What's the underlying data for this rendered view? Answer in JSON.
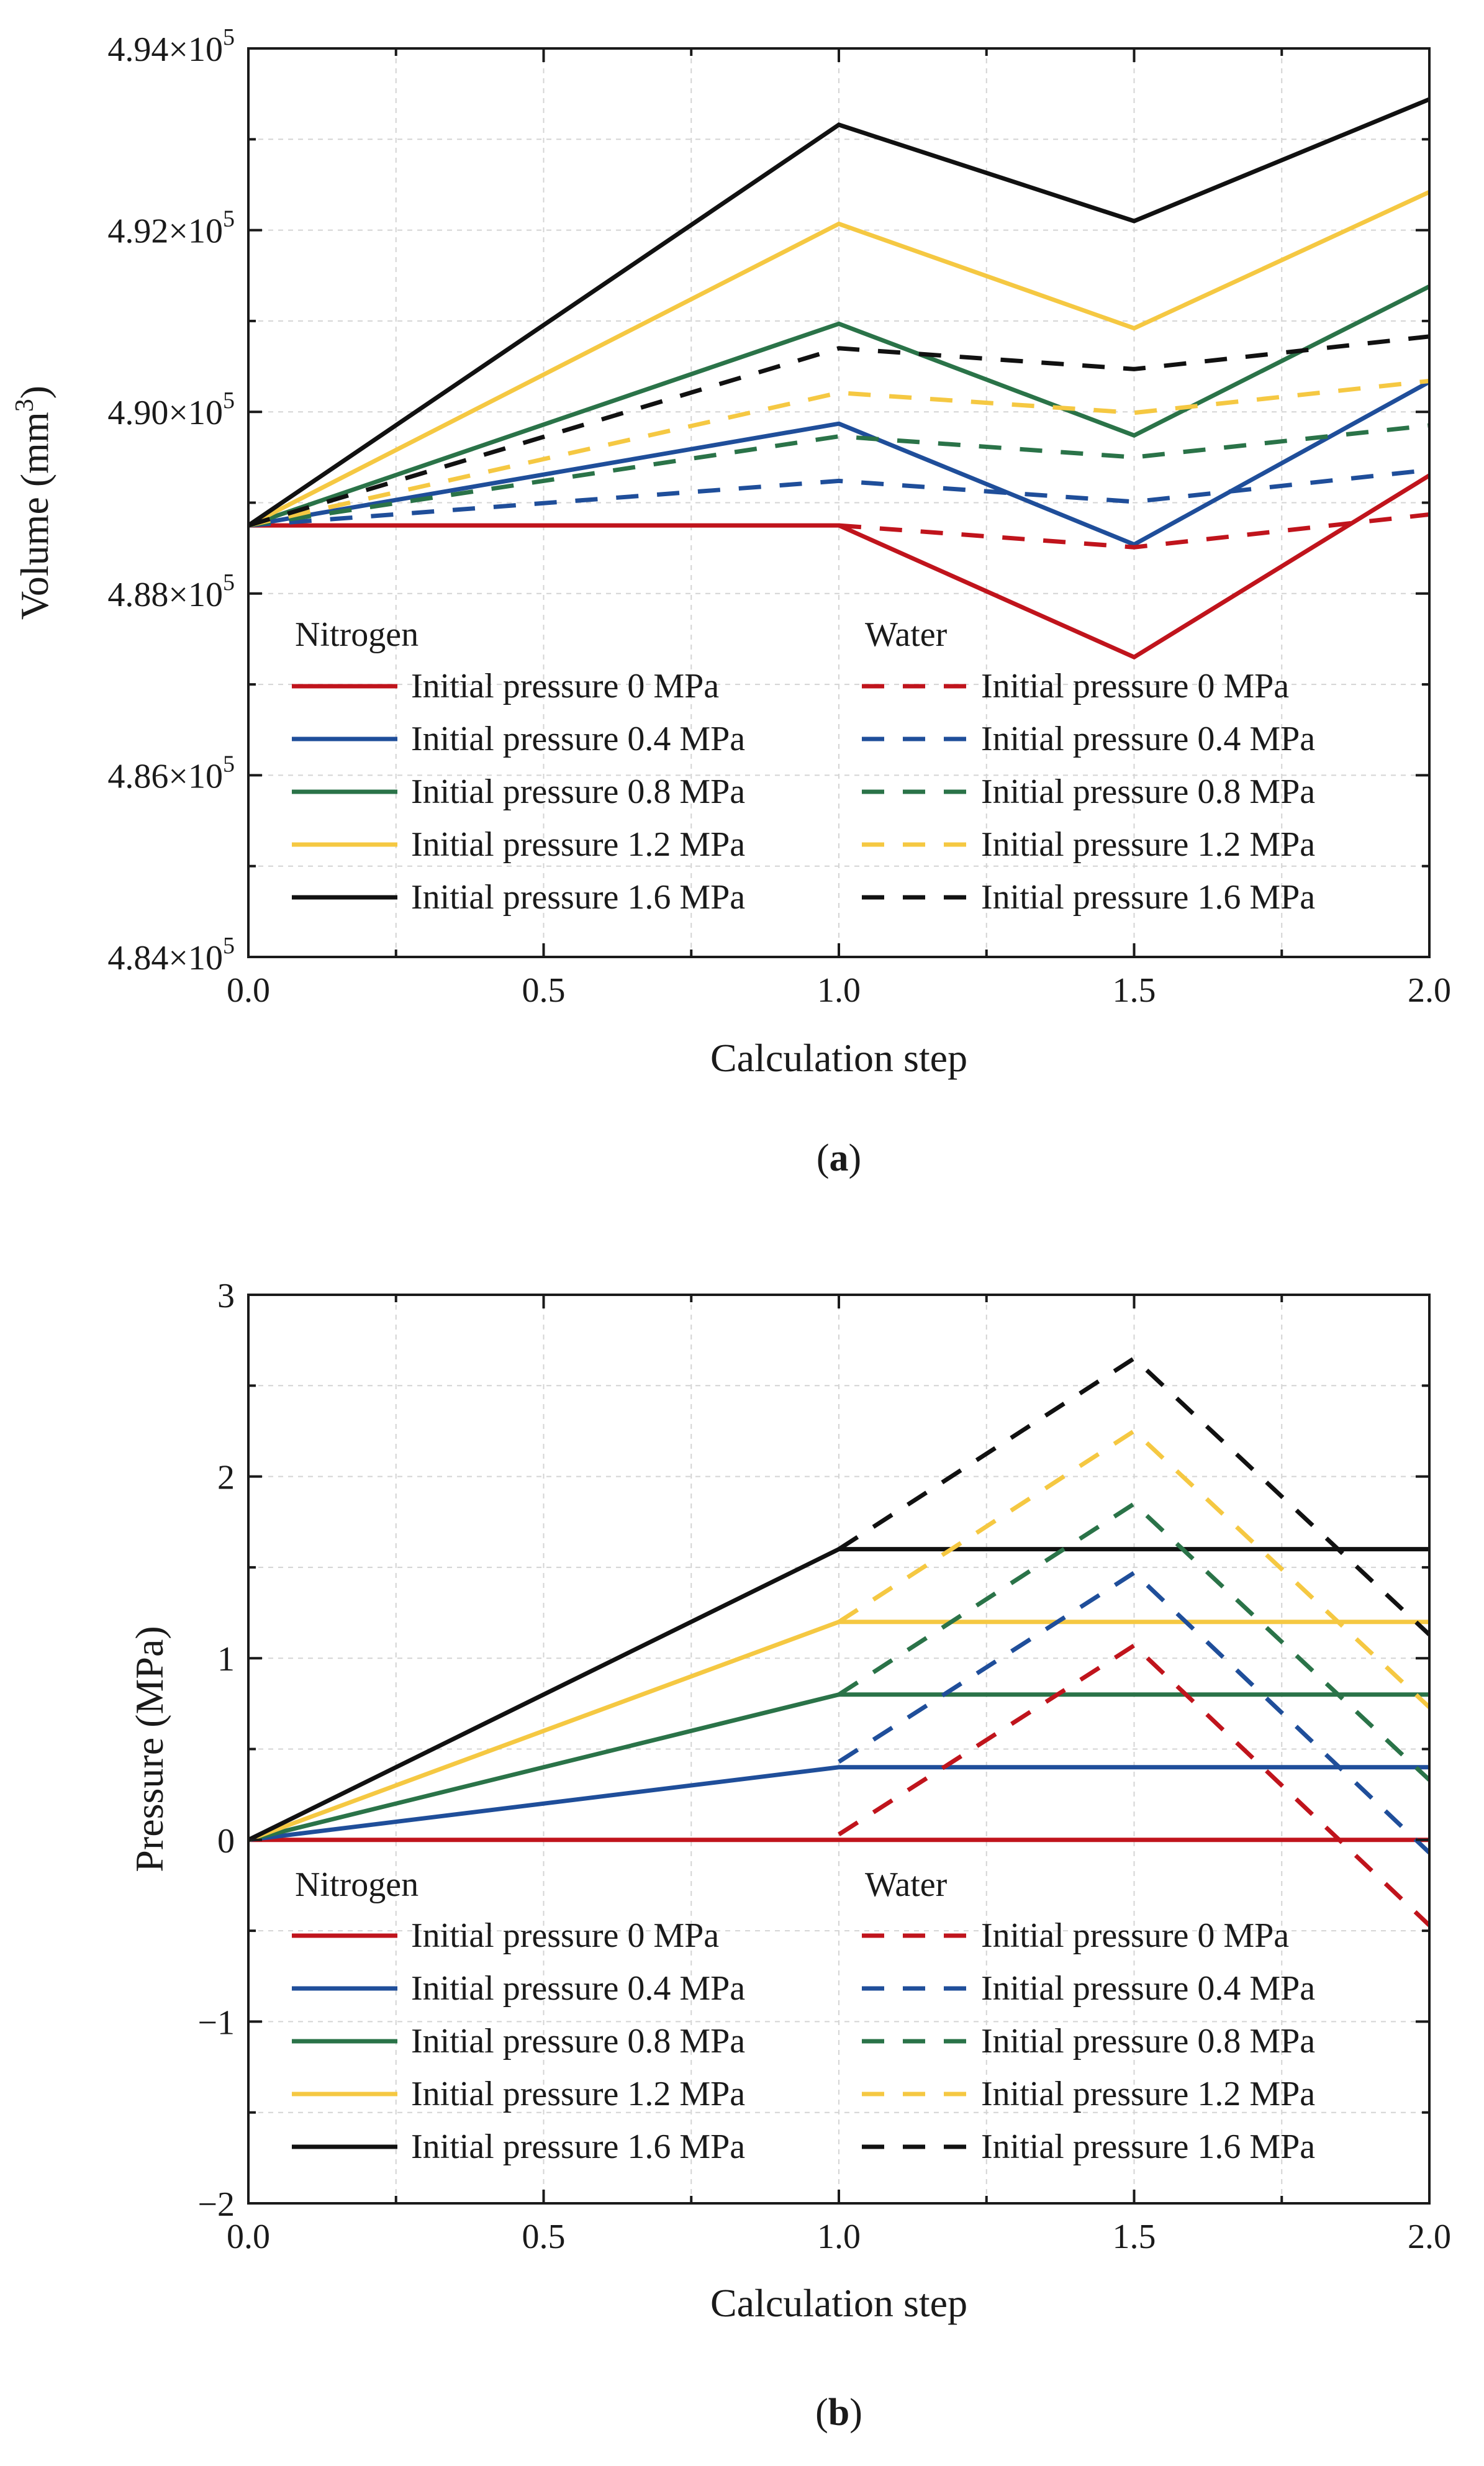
{
  "figure": {
    "captions": [
      "(a)",
      "(b)"
    ],
    "caption_parts": [
      {
        "open": "(",
        "letter": "a",
        "close": ")"
      },
      {
        "open": "(",
        "letter": "b",
        "close": ")"
      }
    ]
  },
  "colors": {
    "p0": "#c0141c",
    "p04": "#1f4e9a",
    "p08": "#2a7348",
    "p12": "#f5c842",
    "p16": "#111111",
    "grid": "#d4d4d4",
    "axis": "#1a1a1a"
  },
  "chart_data": [
    {
      "type": "line",
      "id": "a",
      "title": "",
      "xlabel": "Calculation step",
      "ylabel": "Volume (mm³)",
      "ylabel_parts": {
        "main": "Volume (mm",
        "sup": "3",
        "close": ")"
      },
      "xlim": [
        0.0,
        2.0
      ],
      "ylim": [
        484000,
        494000
      ],
      "x_ticks": [
        0.0,
        0.5,
        1.0,
        1.5,
        2.0
      ],
      "x_tick_labels": [
        "0.0",
        "0.5",
        "1.0",
        "1.5",
        "2.0"
      ],
      "y_ticks": [
        484000,
        486000,
        488000,
        490000,
        492000,
        494000
      ],
      "y_tick_labels": [
        {
          "mantissa": "4.84×10",
          "exp": "5"
        },
        {
          "mantissa": "4.86×10",
          "exp": "5"
        },
        {
          "mantissa": "4.88×10",
          "exp": "5"
        },
        {
          "mantissa": "4.90×10",
          "exp": "5"
        },
        {
          "mantissa": "4.92×10",
          "exp": "5"
        },
        {
          "mantissa": "4.94×10",
          "exp": "5"
        }
      ],
      "grid": true,
      "legend": {
        "location": "lower-center",
        "group_titles": [
          "Nitrogen",
          "Water"
        ]
      },
      "series": [
        {
          "name": "Initial pressure 0 MPa",
          "group": "Nitrogen",
          "style": "solid",
          "color_key": "p0",
          "x": [
            0,
            1,
            1.5,
            2
          ],
          "y": [
            488750,
            488750,
            487300,
            489300
          ]
        },
        {
          "name": "Initial pressure 0.4 MPa",
          "group": "Nitrogen",
          "style": "solid",
          "color_key": "p04",
          "x": [
            0,
            1,
            1.5,
            2
          ],
          "y": [
            488750,
            489870,
            488540,
            490330
          ]
        },
        {
          "name": "Initial pressure 0.8 MPa",
          "group": "Nitrogen",
          "style": "solid",
          "color_key": "p08",
          "x": [
            0,
            1,
            1.5,
            2
          ],
          "y": [
            488750,
            490970,
            489740,
            491380
          ]
        },
        {
          "name": "Initial pressure 1.2 MPa",
          "group": "Nitrogen",
          "style": "solid",
          "color_key": "p12",
          "x": [
            0,
            1,
            1.5,
            2
          ],
          "y": [
            488750,
            492070,
            490920,
            492420
          ]
        },
        {
          "name": "Initial pressure 1.6 MPa",
          "group": "Nitrogen",
          "style": "solid",
          "color_key": "p16",
          "x": [
            0,
            1,
            1.5,
            2
          ],
          "y": [
            488750,
            493160,
            492100,
            493440
          ]
        },
        {
          "name": "Initial pressure 0 MPa",
          "group": "Water",
          "style": "dashed",
          "color_key": "p0",
          "x": [
            1,
            1.5,
            2
          ],
          "y": [
            488750,
            488510,
            488870
          ]
        },
        {
          "name": "Initial pressure 0.4 MPa",
          "group": "Water",
          "style": "dashed",
          "color_key": "p04",
          "x": [
            0,
            1,
            1.5,
            2
          ],
          "y": [
            488750,
            489240,
            489010,
            489360
          ]
        },
        {
          "name": "Initial pressure 0.8 MPa",
          "group": "Water",
          "style": "dashed",
          "color_key": "p08",
          "x": [
            0,
            1,
            1.5,
            2
          ],
          "y": [
            488750,
            489730,
            489500,
            489850
          ]
        },
        {
          "name": "Initial pressure 1.2 MPa",
          "group": "Water",
          "style": "dashed",
          "color_key": "p12",
          "x": [
            0,
            1,
            1.5,
            2
          ],
          "y": [
            488750,
            490210,
            489990,
            490340
          ]
        },
        {
          "name": "Initial pressure 1.6 MPa",
          "group": "Water",
          "style": "dashed",
          "color_key": "p16",
          "x": [
            0,
            1,
            1.5,
            2
          ],
          "y": [
            488750,
            490700,
            490470,
            490830
          ]
        }
      ]
    },
    {
      "type": "line",
      "id": "b",
      "title": "",
      "xlabel": "Calculation step",
      "ylabel": "Pressure (MPa)",
      "xlim": [
        0.0,
        2.0
      ],
      "ylim": [
        -2,
        3
      ],
      "x_ticks": [
        0.0,
        0.5,
        1.0,
        1.5,
        2.0
      ],
      "x_tick_labels": [
        "0.0",
        "0.5",
        "1.0",
        "1.5",
        "2.0"
      ],
      "y_ticks": [
        -2,
        -1,
        0,
        1,
        2,
        3
      ],
      "y_tick_labels": [
        "−2",
        "−1",
        "0",
        "1",
        "2",
        "3"
      ],
      "grid": true,
      "legend": {
        "location": "lower-center",
        "group_titles": [
          "Nitrogen",
          "Water"
        ]
      },
      "series": [
        {
          "name": "Initial pressure 0 MPa",
          "group": "Nitrogen",
          "style": "solid",
          "color_key": "p0",
          "x": [
            0,
            1,
            2
          ],
          "y": [
            0,
            0,
            0
          ]
        },
        {
          "name": "Initial pressure 0.4 MPa",
          "group": "Nitrogen",
          "style": "solid",
          "color_key": "p04",
          "x": [
            0,
            1,
            2
          ],
          "y": [
            0,
            0.4,
            0.4
          ]
        },
        {
          "name": "Initial pressure 0.8 MPa",
          "group": "Nitrogen",
          "style": "solid",
          "color_key": "p08",
          "x": [
            0,
            1,
            2
          ],
          "y": [
            0,
            0.8,
            0.8
          ]
        },
        {
          "name": "Initial pressure 1.2 MPa",
          "group": "Nitrogen",
          "style": "solid",
          "color_key": "p12",
          "x": [
            0,
            1,
            2
          ],
          "y": [
            0,
            1.2,
            1.2
          ]
        },
        {
          "name": "Initial pressure 1.6 MPa",
          "group": "Nitrogen",
          "style": "solid",
          "color_key": "p16",
          "x": [
            0,
            1,
            2
          ],
          "y": [
            0,
            1.6,
            1.6
          ]
        },
        {
          "name": "Initial pressure 0 MPa",
          "group": "Water",
          "style": "dashed",
          "color_key": "p0",
          "x": [
            1,
            1.5,
            2
          ],
          "y": [
            0.03,
            1.07,
            -0.47
          ]
        },
        {
          "name": "Initial pressure 0.4 MPa",
          "group": "Water",
          "style": "dashed",
          "color_key": "p04",
          "x": [
            1,
            1.5,
            2
          ],
          "y": [
            0.43,
            1.47,
            -0.07
          ]
        },
        {
          "name": "Initial pressure 0.8 MPa",
          "group": "Water",
          "style": "dashed",
          "color_key": "p08",
          "x": [
            1,
            1.5,
            2
          ],
          "y": [
            0.8,
            1.85,
            0.33
          ]
        },
        {
          "name": "Initial pressure 1.2 MPa",
          "group": "Water",
          "style": "dashed",
          "color_key": "p12",
          "x": [
            1,
            1.5,
            2
          ],
          "y": [
            1.2,
            2.25,
            0.73
          ]
        },
        {
          "name": "Initial pressure 1.6 MPa",
          "group": "Water",
          "style": "dashed",
          "color_key": "p16",
          "x": [
            1,
            1.5,
            2
          ],
          "y": [
            1.6,
            2.65,
            1.13
          ]
        }
      ]
    }
  ]
}
